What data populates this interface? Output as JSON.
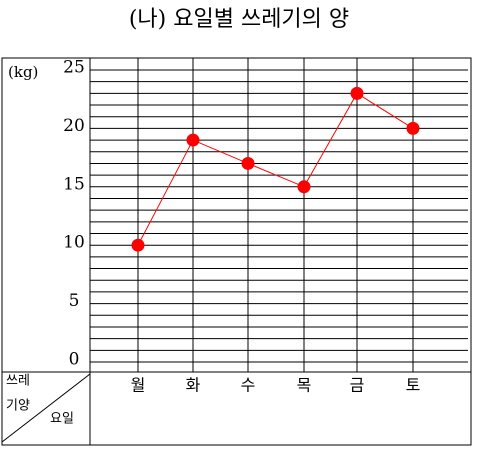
{
  "chart_data": {
    "type": "line",
    "title": "(나) 요일별 쓰레기의 양",
    "y_unit": "(kg)",
    "y_header": [
      "쓰레",
      "기양"
    ],
    "x_header": "요일",
    "categories": [
      "월",
      "화",
      "수",
      "목",
      "금",
      "토"
    ],
    "series": [
      {
        "name": "쓰레기의 양",
        "color": "#ff0000",
        "values": [
          10,
          19,
          17,
          15,
          23,
          20
        ]
      }
    ],
    "ylim": [
      0,
      25
    ],
    "yticks": [
      0,
      5,
      10,
      15,
      20,
      25
    ],
    "minor_yticks": [
      0,
      1,
      2,
      3,
      4,
      5,
      6,
      7,
      8,
      9,
      10,
      11,
      12,
      13,
      14,
      15,
      16,
      17,
      18,
      19,
      20,
      21,
      22,
      23,
      24,
      25
    ],
    "grid": true
  }
}
